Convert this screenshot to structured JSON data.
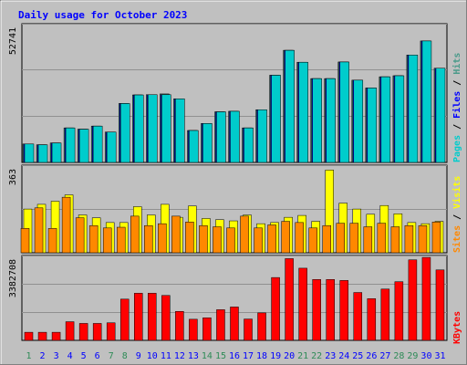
{
  "colors": {
    "background": "#c0c0c0",
    "title": "#0000ff",
    "grid": "#909090",
    "pages": "#00cccc",
    "files": "#0000ff",
    "hits": "#4a9a8a",
    "visits": "#ffff00",
    "sites": "#ff8800",
    "kbytes": "#ff0000",
    "weekday": "#0000ff",
    "weekend": "#2e8b57"
  },
  "chart_data": [
    {
      "type": "bar",
      "title": "Daily usage for October 2023",
      "ymax_label": "52741",
      "ylim": [
        0,
        52741
      ],
      "grid": true,
      "legend": [
        "Pages",
        "Files",
        "Hits"
      ],
      "categories": [
        "1",
        "2",
        "3",
        "4",
        "5",
        "6",
        "7",
        "8",
        "9",
        "10",
        "11",
        "12",
        "13",
        "14",
        "15",
        "16",
        "17",
        "18",
        "19",
        "20",
        "21",
        "22",
        "23",
        "24",
        "25",
        "26",
        "27",
        "28",
        "29",
        "30",
        "31"
      ],
      "series": [
        {
          "name": "Hits",
          "values": [
            7100,
            6800,
            7500,
            13300,
            12800,
            14000,
            11700,
            22700,
            26000,
            26100,
            26400,
            24500,
            12300,
            15000,
            19500,
            19700,
            13300,
            20300,
            33600,
            43200,
            38600,
            32300,
            32300,
            38700,
            31700,
            28700,
            33000,
            33400,
            41400,
            46800,
            36300
          ]
        },
        {
          "name": "Files",
          "values": [
            7100,
            6800,
            7500,
            13300,
            12800,
            14000,
            11700,
            22700,
            26000,
            26100,
            26100,
            24500,
            12300,
            15000,
            19500,
            19700,
            13300,
            20300,
            33600,
            43200,
            38600,
            32300,
            32300,
            38700,
            31700,
            28700,
            33000,
            33400,
            41400,
            46800,
            36300
          ]
        },
        {
          "name": "Pages",
          "values": [
            7100,
            6800,
            7500,
            13300,
            12800,
            14000,
            11700,
            22700,
            26000,
            26100,
            26100,
            24500,
            12300,
            15000,
            19500,
            19700,
            13300,
            20300,
            33600,
            43200,
            38600,
            32300,
            32300,
            38700,
            31700,
            28700,
            33000,
            33400,
            41400,
            46800,
            36300
          ]
        }
      ]
    },
    {
      "type": "bar",
      "ymax_label": "363",
      "ylim": [
        0,
        363
      ],
      "grid": true,
      "legend": [
        "Sites",
        "Visits"
      ],
      "categories": [
        "1",
        "2",
        "3",
        "4",
        "5",
        "6",
        "7",
        "8",
        "9",
        "10",
        "11",
        "12",
        "13",
        "14",
        "15",
        "16",
        "17",
        "18",
        "19",
        "20",
        "21",
        "22",
        "23",
        "24",
        "25",
        "26",
        "27",
        "28",
        "29",
        "30",
        "31"
      ],
      "series": [
        {
          "name": "Visits",
          "values": [
            185,
            205,
            218,
            245,
            160,
            148,
            128,
            128,
            195,
            160,
            205,
            150,
            198,
            145,
            140,
            135,
            160,
            123,
            128,
            150,
            158,
            133,
            350,
            210,
            185,
            163,
            200,
            165,
            128,
            123,
            133
          ]
        },
        {
          "name": "Sites",
          "values": [
            103,
            190,
            103,
            235,
            148,
            115,
            105,
            108,
            155,
            115,
            123,
            155,
            130,
            115,
            110,
            105,
            155,
            105,
            118,
            133,
            128,
            105,
            115,
            125,
            125,
            110,
            125,
            110,
            115,
            115,
            130
          ]
        }
      ]
    },
    {
      "type": "bar",
      "ymax_label": "3382708",
      "ylim": [
        0,
        3382708
      ],
      "grid": true,
      "legend": [
        "KBytes"
      ],
      "categories": [
        "1",
        "2",
        "3",
        "4",
        "5",
        "6",
        "7",
        "8",
        "9",
        "10",
        "11",
        "12",
        "13",
        "14",
        "15",
        "16",
        "17",
        "18",
        "19",
        "20",
        "21",
        "22",
        "23",
        "24",
        "25",
        "26",
        "27",
        "28",
        "29",
        "30",
        "31"
      ],
      "series": [
        {
          "name": "KBytes",
          "values": [
            330000,
            330000,
            330000,
            760000,
            690000,
            690000,
            715000,
            1680000,
            1920000,
            1920000,
            1830000,
            1180000,
            860000,
            920000,
            1250000,
            1360000,
            870000,
            1120000,
            2560000,
            3330000,
            2940000,
            2480000,
            2480000,
            2440000,
            1950000,
            1700000,
            2090000,
            2390000,
            3280000,
            3380000,
            2870000
          ]
        }
      ]
    }
  ],
  "x_labels": [
    "1",
    "2",
    "3",
    "4",
    "5",
    "6",
    "7",
    "8",
    "9",
    "10",
    "11",
    "12",
    "13",
    "14",
    "15",
    "16",
    "17",
    "18",
    "19",
    "20",
    "21",
    "22",
    "23",
    "24",
    "25",
    "26",
    "27",
    "28",
    "29",
    "30",
    "31"
  ],
  "weekend_days": [
    1,
    7,
    8,
    14,
    15,
    21,
    22,
    28,
    29
  ],
  "side_labels": {
    "top": [
      {
        "text": "Pages",
        "key": "pages"
      },
      {
        "text": " / ",
        "key": "plain"
      },
      {
        "text": "Files",
        "key": "files"
      },
      {
        "text": " / ",
        "key": "plain"
      },
      {
        "text": "Hits",
        "key": "hits"
      }
    ],
    "mid": [
      {
        "text": "Sites",
        "key": "sites"
      },
      {
        "text": " / ",
        "key": "plain"
      },
      {
        "text": "Visits",
        "key": "visits"
      }
    ],
    "bot": [
      {
        "text": "KBytes",
        "key": "kbytes"
      }
    ]
  }
}
